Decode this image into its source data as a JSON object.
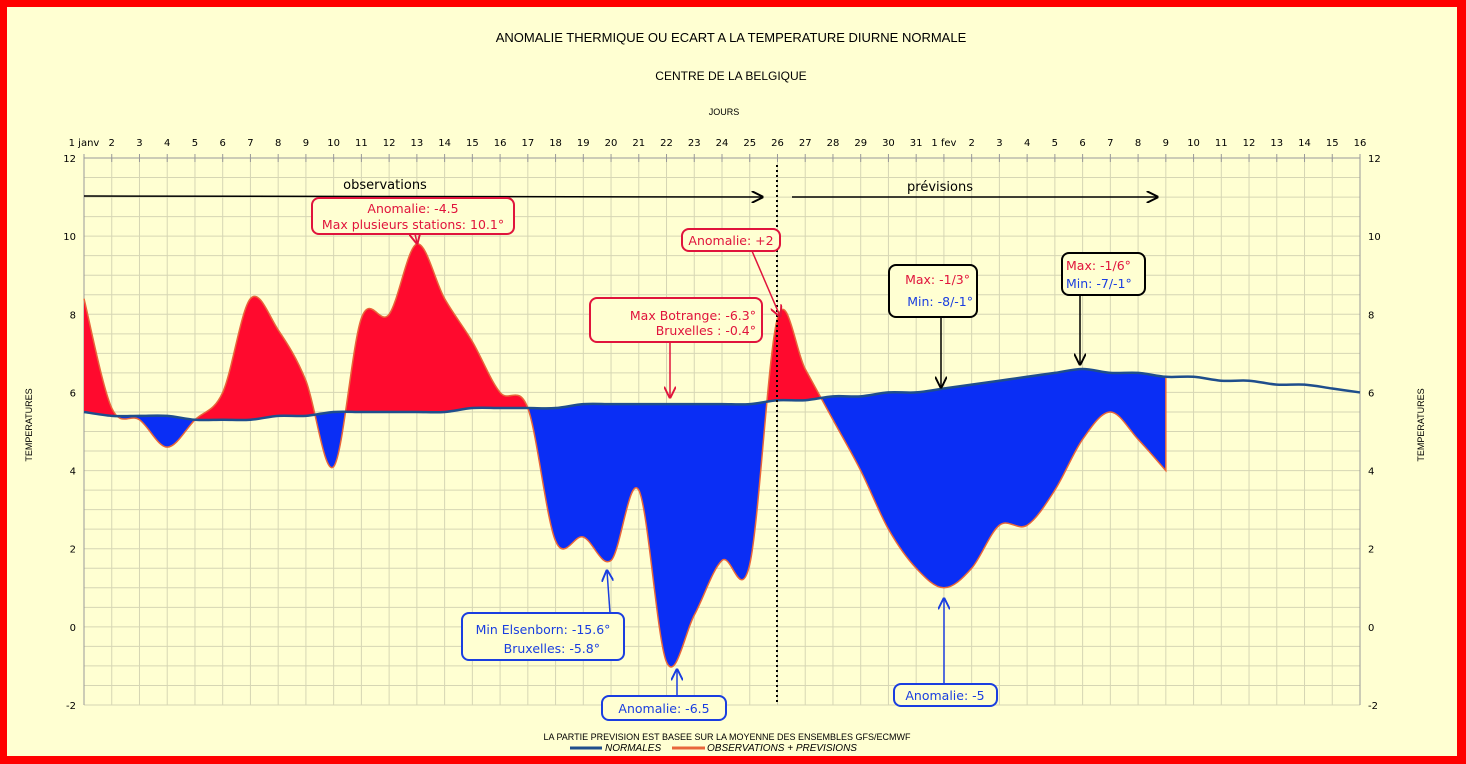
{
  "chart_data": {
    "type": "area",
    "title": "ANOMALIE THERMIQUE OU ECART A LA TEMPERATURE DIURNE NORMALE",
    "subtitle": "CENTRE DE LA BELGIQUE",
    "xlabel": "JOURS",
    "ylabel": "TEMPERATURES",
    "ylim": [
      -2,
      12
    ],
    "yticks": [
      -2,
      0,
      2,
      4,
      6,
      8,
      10,
      12
    ],
    "grid": true,
    "legend_position": "bottom",
    "x_tick_labels": [
      "1 janv",
      "2",
      "3",
      "4",
      "5",
      "6",
      "7",
      "8",
      "9",
      "10",
      "11",
      "12",
      "13",
      "14",
      "15",
      "16",
      "17",
      "18",
      "19",
      "20",
      "21",
      "22",
      "23",
      "24",
      "25",
      "26",
      "27",
      "28",
      "29",
      "30",
      "31",
      "1 fev",
      "2",
      "3",
      "4",
      "5",
      "6",
      "7",
      "8",
      "9",
      "10",
      "11",
      "12",
      "13",
      "14",
      "15",
      "16"
    ],
    "series": [
      {
        "name": "NORMALES",
        "color": "#1f4e8c",
        "values": [
          5.5,
          5.4,
          5.4,
          5.4,
          5.3,
          5.3,
          5.3,
          5.4,
          5.4,
          5.5,
          5.5,
          5.5,
          5.5,
          5.5,
          5.6,
          5.6,
          5.6,
          5.6,
          5.7,
          5.7,
          5.7,
          5.7,
          5.7,
          5.7,
          5.7,
          5.8,
          5.8,
          5.9,
          5.9,
          6.0,
          6.0,
          6.1,
          6.2,
          6.3,
          6.4,
          6.5,
          6.6,
          6.5,
          6.5,
          6.4,
          6.4,
          6.3,
          6.3,
          6.2,
          6.2,
          6.1,
          6.0
        ]
      },
      {
        "name": "OBSERVATIONS + PREVISIONS",
        "color": "#e8663a",
        "values": [
          8.4,
          5.6,
          5.3,
          4.6,
          5.3,
          6.0,
          8.4,
          7.6,
          6.3,
          4.1,
          7.9,
          8.0,
          9.8,
          8.4,
          7.3,
          6.0,
          5.6,
          2.2,
          2.3,
          1.7,
          3.5,
          -0.9,
          0.3,
          1.7,
          1.6,
          7.9,
          6.6,
          5.3,
          4.0,
          2.5,
          1.5,
          1.0,
          1.5,
          2.6,
          2.6,
          3.5,
          4.8,
          5.5,
          4.8,
          4.0
        ]
      }
    ],
    "fill_colors": {
      "above": "#ff0a2e",
      "below": "#0a2ef5"
    },
    "footnote": "LA PARTIE PREVISION EST BASEE SUR LA MOYENNE DES ENSEMBLES GFS/ECMWF",
    "annotations": {
      "observations": "observations",
      "previsions": "prévisions",
      "a1": [
        "Anomalie: -4.5",
        "Max plusieurs stations: 10.1°"
      ],
      "a2": [
        "Anomalie: +2"
      ],
      "a3": [
        "Max Botrange: -6.3°",
        "Bruxelles : -0.4°"
      ],
      "a4": [
        "Max: -1/3°",
        "Min: -8/-1°"
      ],
      "a5": [
        "Max: -1/6°",
        "Min: -7/-1°"
      ],
      "a6": [
        "Min Elsenborn: -15.6°",
        "Bruxelles: -5.8°"
      ],
      "a7": [
        "Anomalie: -6.5"
      ],
      "a8": [
        "Anomalie: -5"
      ]
    }
  }
}
